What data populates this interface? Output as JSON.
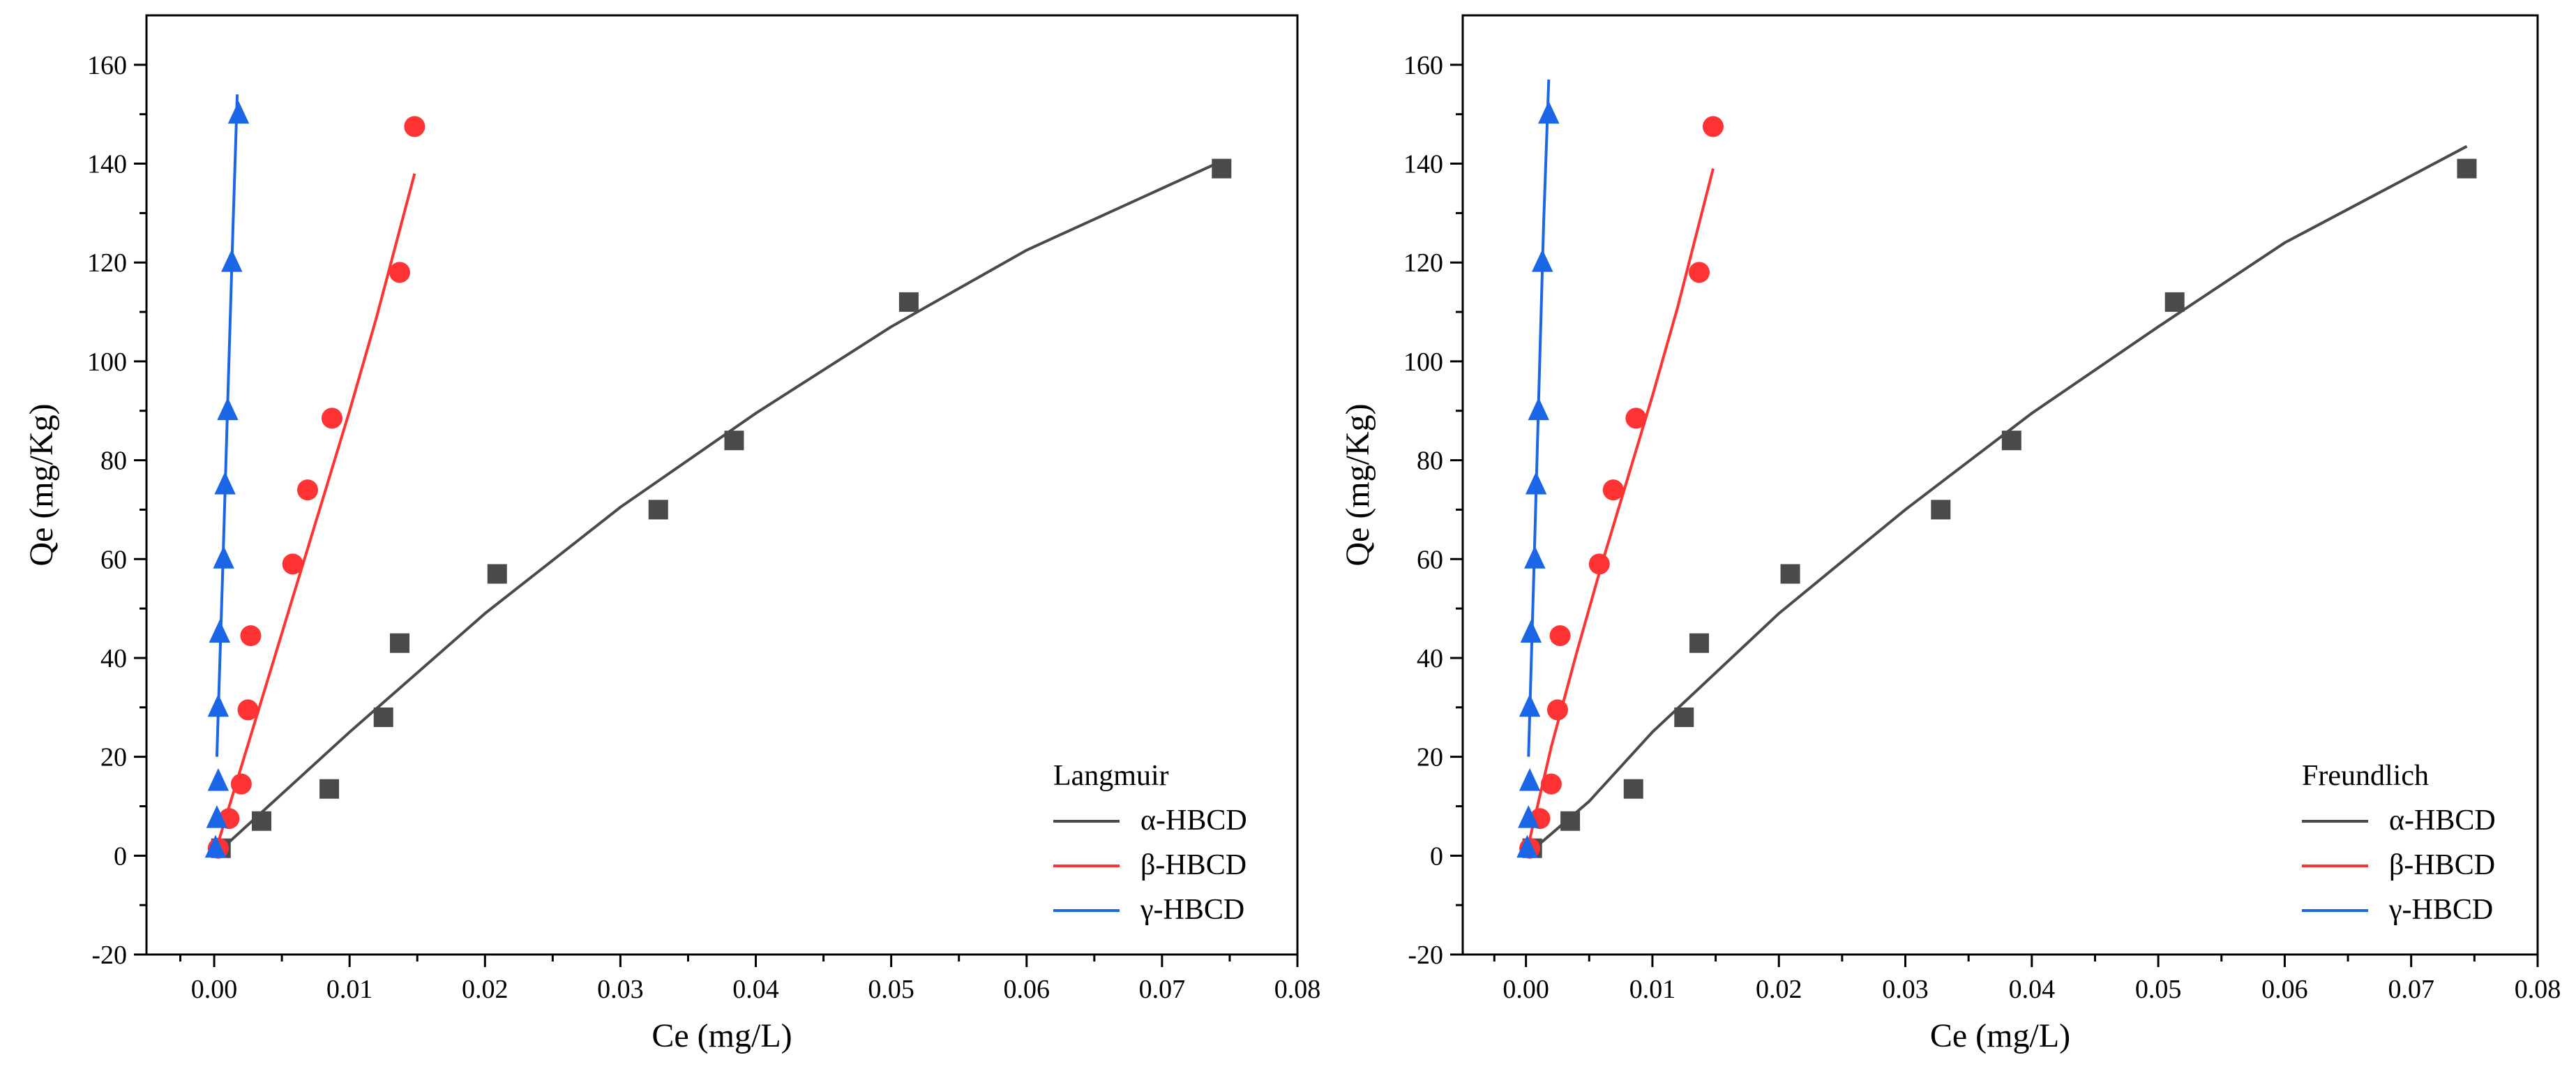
{
  "chart_data": [
    {
      "type": "scatter",
      "panel": "left",
      "xlabel": "Ce (mg/L)",
      "ylabel": "Qe (mg/Kg)",
      "xlim": [
        -0.005,
        0.08
      ],
      "ylim": [
        -20,
        170
      ],
      "xticks": [
        0.0,
        0.01,
        0.02,
        0.03,
        0.04,
        0.05,
        0.06,
        0.07,
        0.08
      ],
      "xtick_labels": [
        "0.00",
        "0.01",
        "0.02",
        "0.03",
        "0.04",
        "0.05",
        "0.06",
        "0.07",
        "0.08"
      ],
      "yticks": [
        -20,
        0,
        20,
        40,
        60,
        80,
        100,
        120,
        140,
        160
      ],
      "ytick_labels": [
        "-20",
        "0",
        "20",
        "40",
        "60",
        "80",
        "100",
        "120",
        "140",
        "160"
      ],
      "legend_title": "Langmuir",
      "legend_position": "bottom-right",
      "series": [
        {
          "name": "α-HBCD",
          "color": "#4a4a4a",
          "marker": "square",
          "points": [
            [
              0.0005,
              1.5
            ],
            [
              0.0035,
              7
            ],
            [
              0.0085,
              13.5
            ],
            [
              0.0125,
              28
            ],
            [
              0.0137,
              43
            ],
            [
              0.0209,
              57
            ],
            [
              0.0328,
              70
            ],
            [
              0.0384,
              84
            ],
            [
              0.0513,
              112
            ],
            [
              0.0744,
              139
            ]
          ],
          "fit": [
            [
              0.0,
              0.0
            ],
            [
              0.01,
              25
            ],
            [
              0.02,
              49
            ],
            [
              0.03,
              70.5
            ],
            [
              0.04,
              89.5
            ],
            [
              0.05,
              107
            ],
            [
              0.06,
              122.5
            ],
            [
              0.0744,
              140.5
            ]
          ]
        },
        {
          "name": "β-HBCD",
          "color": "#ff3333",
          "marker": "circle",
          "points": [
            [
              0.0003,
              1.5
            ],
            [
              0.0011,
              7.5
            ],
            [
              0.002,
              14.5
            ],
            [
              0.0025,
              29.5
            ],
            [
              0.0027,
              44.5
            ],
            [
              0.0058,
              59
            ],
            [
              0.0069,
              74
            ],
            [
              0.0087,
              88.5
            ],
            [
              0.0137,
              118
            ],
            [
              0.0148,
              147.5
            ]
          ],
          "fit": [
            [
              0.0,
              0.0
            ],
            [
              0.002,
              18
            ],
            [
              0.004,
              36
            ],
            [
              0.006,
              54
            ],
            [
              0.008,
              72
            ],
            [
              0.01,
              90
            ],
            [
              0.012,
              109
            ],
            [
              0.0148,
              138
            ]
          ]
        },
        {
          "name": "γ-HBCD",
          "color": "#1a66e6",
          "marker": "triangle",
          "points": [
            [
              0.0001,
              1.5
            ],
            [
              0.0002,
              7.5
            ],
            [
              0.0003,
              15
            ],
            [
              0.0003,
              30
            ],
            [
              0.0004,
              45
            ],
            [
              0.0007,
              60
            ],
            [
              0.0008,
              75
            ],
            [
              0.001,
              90
            ],
            [
              0.0013,
              120
            ],
            [
              0.0018,
              150
            ]
          ],
          "fit": [
            [
              0.0002,
              20
            ],
            [
              0.0006,
              55
            ],
            [
              0.001,
              92
            ],
            [
              0.0014,
              128
            ],
            [
              0.0017,
              154
            ]
          ]
        }
      ]
    },
    {
      "type": "scatter",
      "panel": "right",
      "xlabel": "Ce (mg/L)",
      "ylabel": "Qe (mg/Kg)",
      "xlim": [
        -0.005,
        0.08
      ],
      "ylim": [
        -20,
        170
      ],
      "xticks": [
        0.0,
        0.01,
        0.02,
        0.03,
        0.04,
        0.05,
        0.06,
        0.07,
        0.08
      ],
      "xtick_labels": [
        "0.00",
        "0.01",
        "0.02",
        "0.03",
        "0.04",
        "0.05",
        "0.06",
        "0.07",
        "0.08"
      ],
      "yticks": [
        -20,
        0,
        20,
        40,
        60,
        80,
        100,
        120,
        140,
        160
      ],
      "ytick_labels": [
        "-20",
        "0",
        "20",
        "40",
        "60",
        "80",
        "100",
        "120",
        "140",
        "160"
      ],
      "legend_title": "Freundlich",
      "legend_position": "bottom-right",
      "series": [
        {
          "name": "α-HBCD",
          "color": "#4a4a4a",
          "marker": "square",
          "points": [
            [
              0.0005,
              1.5
            ],
            [
              0.0035,
              7
            ],
            [
              0.0085,
              13.5
            ],
            [
              0.0125,
              28
            ],
            [
              0.0137,
              43
            ],
            [
              0.0209,
              57
            ],
            [
              0.0328,
              70
            ],
            [
              0.0384,
              84
            ],
            [
              0.0513,
              112
            ],
            [
              0.0744,
              139
            ]
          ],
          "fit": [
            [
              0.0,
              0.0
            ],
            [
              0.005,
              11
            ],
            [
              0.01,
              25
            ],
            [
              0.02,
              49
            ],
            [
              0.03,
              70
            ],
            [
              0.04,
              89.5
            ],
            [
              0.05,
              107
            ],
            [
              0.06,
              124
            ],
            [
              0.0744,
              143.5
            ]
          ]
        },
        {
          "name": "β-HBCD",
          "color": "#ff3333",
          "marker": "circle",
          "points": [
            [
              0.0003,
              1.5
            ],
            [
              0.0011,
              7.5
            ],
            [
              0.002,
              14.5
            ],
            [
              0.0025,
              29.5
            ],
            [
              0.0027,
              44.5
            ],
            [
              0.0058,
              59
            ],
            [
              0.0069,
              74
            ],
            [
              0.0087,
              88.5
            ],
            [
              0.0137,
              118
            ],
            [
              0.0148,
              147.5
            ]
          ],
          "fit": [
            [
              0.0,
              0.0
            ],
            [
              0.002,
              22
            ],
            [
              0.004,
              41
            ],
            [
              0.006,
              59
            ],
            [
              0.008,
              76
            ],
            [
              0.01,
              93
            ],
            [
              0.012,
              111
            ],
            [
              0.0148,
              139
            ]
          ]
        },
        {
          "name": "γ-HBCD",
          "color": "#1a66e6",
          "marker": "triangle",
          "points": [
            [
              0.0001,
              1.5
            ],
            [
              0.0002,
              7.5
            ],
            [
              0.0003,
              15
            ],
            [
              0.0003,
              30
            ],
            [
              0.0004,
              45
            ],
            [
              0.0007,
              60
            ],
            [
              0.0008,
              75
            ],
            [
              0.001,
              90
            ],
            [
              0.0013,
              120
            ],
            [
              0.0018,
              150
            ]
          ],
          "fit": [
            [
              0.0002,
              20
            ],
            [
              0.0006,
              55
            ],
            [
              0.001,
              92
            ],
            [
              0.0014,
              128
            ],
            [
              0.0018,
              157
            ]
          ]
        }
      ]
    }
  ]
}
